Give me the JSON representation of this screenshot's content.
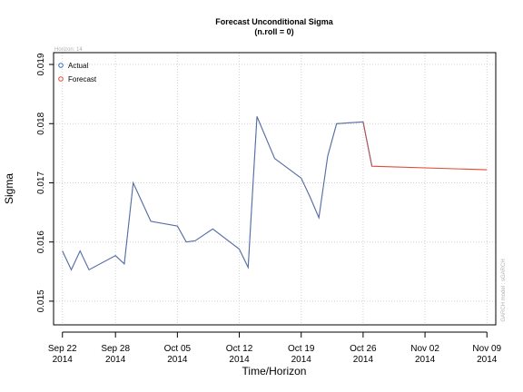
{
  "chart_data": {
    "type": "line",
    "title": "Forecast Unconditional Sigma",
    "subtitle": "(n.roll = 0)",
    "xlabel": "Time/Horizon",
    "ylabel": "Sigma",
    "corner_label": "Horizon: 14",
    "watermark": "GARCH model  :  sGARCH",
    "ylim": [
      0.0146,
      0.0192
    ],
    "xlim": [
      "2014-09-21",
      "2014-11-10"
    ],
    "grid": true,
    "legend_position": "top-left",
    "y_ticks": [
      {
        "value": 0.015,
        "label": "0.015"
      },
      {
        "value": 0.016,
        "label": "0.016"
      },
      {
        "value": 0.017,
        "label": "0.017"
      },
      {
        "value": 0.018,
        "label": "0.018"
      },
      {
        "value": 0.019,
        "label": "0.019"
      }
    ],
    "x_ticks": [
      {
        "date": "2014-09-22",
        "label1": "Sep 22",
        "label2": "2014"
      },
      {
        "date": "2014-09-28",
        "label1": "Sep 28",
        "label2": "2014"
      },
      {
        "date": "2014-10-05",
        "label1": "Oct 05",
        "label2": "2014"
      },
      {
        "date": "2014-10-12",
        "label1": "Oct 12",
        "label2": "2014"
      },
      {
        "date": "2014-10-19",
        "label1": "Oct 19",
        "label2": "2014"
      },
      {
        "date": "2014-10-26",
        "label1": "Oct 26",
        "label2": "2014"
      },
      {
        "date": "2014-11-02",
        "label1": "Nov 02",
        "label2": "2014"
      },
      {
        "date": "2014-11-09",
        "label1": "Nov 09",
        "label2": "2014"
      }
    ],
    "series": [
      {
        "name": "Actual",
        "color": "#3b6fb6",
        "x": [
          "2014-09-22",
          "2014-09-23",
          "2014-09-24",
          "2014-09-25",
          "2014-09-28",
          "2014-09-29",
          "2014-09-30",
          "2014-10-02",
          "2014-10-05",
          "2014-10-06",
          "2014-10-07",
          "2014-10-09",
          "2014-10-12",
          "2014-10-13",
          "2014-10-14",
          "2014-10-16",
          "2014-10-19",
          "2014-10-20",
          "2014-10-21",
          "2014-10-22",
          "2014-10-23",
          "2014-10-26",
          "2014-10-27"
        ],
        "values": [
          0.01585,
          0.01553,
          0.01585,
          0.01553,
          0.01577,
          0.01563,
          0.017,
          0.01635,
          0.01627,
          0.016,
          0.01602,
          0.01622,
          0.01588,
          0.01557,
          0.01812,
          0.01741,
          0.01708,
          0.01676,
          0.01641,
          0.01745,
          0.018,
          0.01803,
          0.01728
        ]
      },
      {
        "name": "Forecast",
        "color": "#e34a33",
        "x": [
          "2014-10-26",
          "2014-10-27",
          "2014-11-09"
        ],
        "values": [
          0.01803,
          0.01728,
          0.01722
        ]
      }
    ]
  }
}
